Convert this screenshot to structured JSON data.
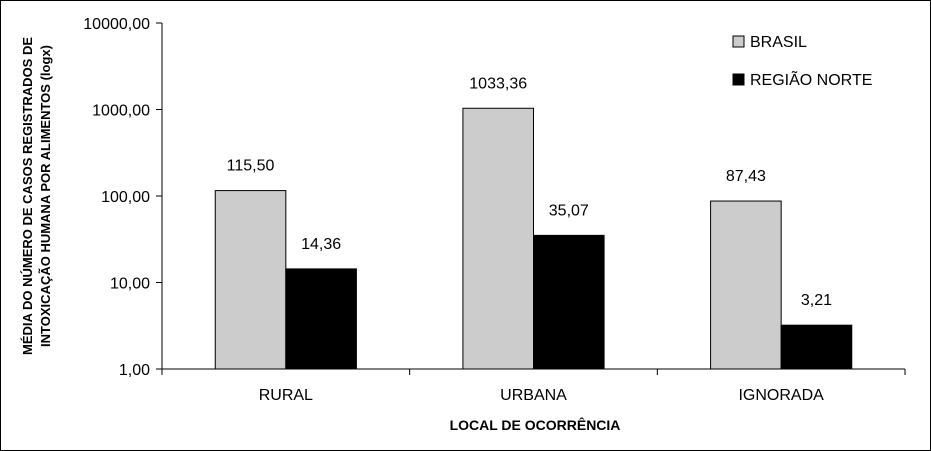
{
  "chart_data": {
    "type": "bar",
    "categories": [
      "RURAL",
      "URBANA",
      "IGNORADA"
    ],
    "series": [
      {
        "name": "BRASIL",
        "values": [
          115.5,
          1033.36,
          87.43
        ],
        "labels": [
          "115,50",
          "1033,36",
          "87,43"
        ],
        "color": "#cccccc"
      },
      {
        "name": "REGIÃO NORTE",
        "values": [
          14.36,
          35.07,
          3.21
        ],
        "labels": [
          "14,36",
          "35,07",
          "3,21"
        ],
        "color": "#000000"
      }
    ],
    "xlabel": "LOCAL DE OCORRÊNCIA",
    "ylabel_lines": [
      "MÉDIA DO NÚMERO DE CASOS REGISTRADOS DE",
      "INTOXICAÇÃO HUMANA POR ALIMENTOS (logx)"
    ],
    "y_scale": "log",
    "ylim": [
      1,
      10000
    ],
    "y_ticks": [
      1,
      10,
      100,
      1000,
      10000
    ],
    "y_tick_labels": [
      "1,00",
      "10,00",
      "100,00",
      "1000,00",
      "10000,00"
    ],
    "grid": false,
    "legend_position": "top-right"
  }
}
